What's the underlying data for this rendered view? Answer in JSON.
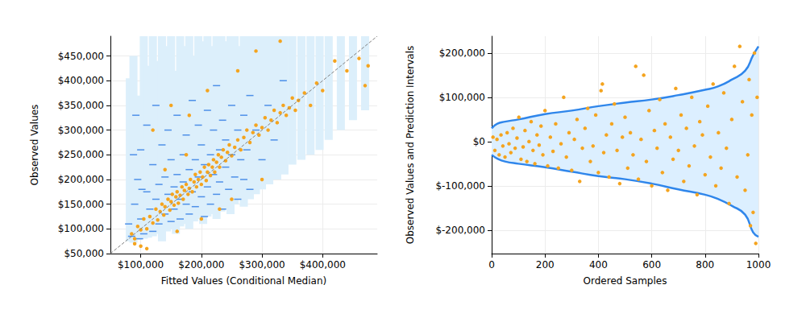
{
  "chart_data": [
    {
      "type": "scatter",
      "xlabel": "Fitted Values (Conditional Median)",
      "ylabel": "Observed Values",
      "xlim": [
        50000,
        490000
      ],
      "ylim": [
        50000,
        490000
      ],
      "xticks": [
        {
          "value": 100000,
          "label": "$100,000"
        },
        {
          "value": 200000,
          "label": "$200,000"
        },
        {
          "value": 300000,
          "label": "$300,000"
        },
        {
          "value": 400000,
          "label": "$400,000"
        }
      ],
      "yticks": [
        {
          "value": 50000,
          "label": "$50,000"
        },
        {
          "value": 100000,
          "label": "$100,000"
        },
        {
          "value": 150000,
          "label": "$150,000"
        },
        {
          "value": 200000,
          "label": "$200,000"
        },
        {
          "value": 250000,
          "label": "$250,000"
        },
        {
          "value": 300000,
          "label": "$300,000"
        },
        {
          "value": 350000,
          "label": "$350,000"
        },
        {
          "value": 400000,
          "label": "$400,000"
        },
        {
          "value": 450000,
          "label": "$450,000"
        }
      ],
      "grid": true,
      "series": [
        {
          "type": "interval",
          "color": "#dceffb",
          "x": [
            82000,
            88000,
            95000,
            105000,
            112000,
            120000,
            128000,
            135000,
            143000,
            150000,
            158000,
            165000,
            172000,
            180000,
            188000,
            195000,
            203000,
            210000,
            218000,
            225000,
            233000,
            240000,
            248000,
            255000,
            263000,
            270000,
            280000,
            290000,
            300000,
            312000,
            325000,
            337000,
            350000,
            365000,
            380000,
            395000,
            410000,
            430000,
            450000,
            470000
          ],
          "low": [
            75000,
            72000,
            78000,
            80000,
            82000,
            85000,
            90000,
            75000,
            95000,
            100000,
            90000,
            105000,
            110000,
            100000,
            115000,
            120000,
            110000,
            125000,
            130000,
            120000,
            135000,
            140000,
            130000,
            150000,
            160000,
            145000,
            160000,
            170000,
            180000,
            190000,
            200000,
            210000,
            230000,
            240000,
            250000,
            260000,
            280000,
            300000,
            320000,
            340000
          ],
          "high": [
            405000,
            450000,
            370000,
            490000,
            430000,
            490000,
            440000,
            490000,
            470000,
            490000,
            420000,
            490000,
            470000,
            490000,
            450000,
            490000,
            480000,
            490000,
            470000,
            490000,
            490000,
            480000,
            490000,
            490000,
            470000,
            490000,
            490000,
            490000,
            490000,
            490000,
            490000,
            490000,
            490000,
            490000,
            490000,
            490000,
            490000,
            490000,
            490000,
            490000
          ]
        },
        {
          "type": "scatter",
          "marker": "dash",
          "color": "#2a78e4",
          "x": [
            85000,
            90000,
            95000,
            100000,
            100000,
            105000,
            110000,
            110000,
            115000,
            120000,
            120000,
            125000,
            125000,
            130000,
            130000,
            135000,
            140000,
            140000,
            145000,
            145000,
            150000,
            150000,
            155000,
            155000,
            160000,
            160000,
            165000,
            165000,
            170000,
            170000,
            175000,
            175000,
            180000,
            180000,
            185000,
            185000,
            190000,
            190000,
            195000,
            195000,
            200000,
            200000,
            205000,
            205000,
            210000,
            210000,
            215000,
            215000,
            220000,
            220000,
            225000,
            225000,
            230000,
            230000,
            235000,
            235000,
            240000,
            240000,
            245000,
            250000,
            250000,
            255000,
            260000,
            260000,
            265000,
            270000,
            270000,
            275000,
            280000,
            280000,
            290000,
            300000,
            310000,
            320000,
            335000,
            80000,
            88000,
            92000,
            98000,
            102000
          ],
          "values": [
            85000,
            150000,
            200000,
            120000,
            260000,
            90000,
            175000,
            310000,
            140000,
            95000,
            230000,
            160000,
            350000,
            190000,
            110000,
            270000,
            130000,
            205000,
            170000,
            300000,
            115000,
            240000,
            185000,
            140000,
            210000,
            330000,
            160000,
            120000,
            250000,
            195000,
            150000,
            290000,
            220000,
            130000,
            175000,
            360000,
            240000,
            145000,
            205000,
            310000,
            165000,
            270000,
            230000,
            125000,
            185000,
            340000,
            250000,
            150000,
            210000,
            300000,
            170000,
            390000,
            260000,
            195000,
            140000,
            320000,
            225000,
            280000,
            180000,
            250000,
            350000,
            205000,
            160000,
            300000,
            240000,
            200000,
            330000,
            260000,
            180000,
            370000,
            300000,
            240000,
            350000,
            280000,
            400000,
            110000,
            250000,
            330000,
            80000,
            180000
          ]
        },
        {
          "type": "scatter",
          "marker": "circle",
          "color": "#f4a41f",
          "x": [
            85000,
            90000,
            95000,
            100000,
            105000,
            110000,
            115000,
            120000,
            125000,
            128000,
            132000,
            135000,
            138000,
            140000,
            145000,
            148000,
            150000,
            152000,
            155000,
            158000,
            160000,
            162000,
            165000,
            168000,
            170000,
            172000,
            175000,
            178000,
            180000,
            182000,
            185000,
            188000,
            190000,
            192000,
            195000,
            198000,
            200000,
            202000,
            205000,
            208000,
            210000,
            212000,
            215000,
            218000,
            220000,
            222000,
            225000,
            228000,
            230000,
            233000,
            236000,
            240000,
            243000,
            246000,
            250000,
            255000,
            260000,
            265000,
            270000,
            275000,
            280000,
            285000,
            290000,
            295000,
            300000,
            305000,
            310000,
            315000,
            320000,
            325000,
            330000,
            335000,
            340000,
            345000,
            350000,
            355000,
            360000,
            370000,
            380000,
            390000,
            400000,
            420000,
            440000,
            460000,
            470000,
            475000,
            120000,
            150000,
            180000,
            200000,
            230000,
            110000,
            160000,
            250000,
            210000,
            300000,
            175000,
            140000,
            260000,
            330000,
            290000,
            100000,
            90000
          ],
          "values": [
            90000,
            80000,
            105000,
            98000,
            120000,
            100000,
            125000,
            112000,
            140000,
            118000,
            135000,
            150000,
            128000,
            145000,
            160000,
            138000,
            155000,
            170000,
            148000,
            165000,
            175000,
            152000,
            168000,
            185000,
            160000,
            178000,
            190000,
            170000,
            182000,
            200000,
            175000,
            195000,
            210000,
            185000,
            200000,
            215000,
            190000,
            205000,
            225000,
            198000,
            215000,
            230000,
            208000,
            225000,
            240000,
            215000,
            235000,
            250000,
            225000,
            245000,
            260000,
            238000,
            255000,
            270000,
            248000,
            265000,
            280000,
            260000,
            285000,
            300000,
            275000,
            295000,
            310000,
            290000,
            305000,
            325000,
            300000,
            320000,
            340000,
            315000,
            335000,
            350000,
            330000,
            345000,
            365000,
            340000,
            360000,
            375000,
            350000,
            395000,
            380000,
            440000,
            420000,
            445000,
            390000,
            430000,
            300000,
            350000,
            330000,
            120000,
            140000,
            60000,
            95000,
            160000,
            380000,
            200000,
            250000,
            220000,
            420000,
            480000,
            460000,
            65000,
            70000
          ]
        },
        {
          "type": "line",
          "line_style": "dashed",
          "color": "#808080",
          "x": [
            50000,
            490000
          ],
          "values": [
            50000,
            490000
          ]
        }
      ]
    },
    {
      "type": "scatter",
      "xlabel": "Ordered Samples",
      "ylabel": "Observed Values and Prediction Intervals",
      "xlim": [
        0,
        1000
      ],
      "ylim": [
        -253000,
        238000
      ],
      "xticks": [
        0,
        200,
        400,
        600,
        800,
        1000
      ],
      "yticks": [
        {
          "value": -200000,
          "label": "$-200,000"
        },
        {
          "value": -100000,
          "label": "$-100,000"
        },
        {
          "value": 0,
          "label": "$0"
        },
        {
          "value": 100000,
          "label": "$100,000"
        },
        {
          "value": 200000,
          "label": "$200,000"
        }
      ],
      "grid": true,
      "series": [
        {
          "type": "band",
          "color": "#2f86eb",
          "x": [
            0,
            20,
            50,
            100,
            200,
            300,
            400,
            500,
            600,
            700,
            800,
            850,
            900,
            950,
            980,
            1000
          ],
          "low": [
            -30000,
            -38000,
            -45000,
            -50000,
            -58000,
            -68000,
            -78000,
            -85000,
            -95000,
            -108000,
            -120000,
            -130000,
            -145000,
            -165000,
            -205000,
            -215000
          ],
          "high": [
            30000,
            40000,
            45000,
            50000,
            62000,
            70000,
            80000,
            88000,
            95000,
            105000,
            117000,
            125000,
            140000,
            160000,
            195000,
            215000
          ]
        },
        {
          "type": "scatter",
          "marker": "circle",
          "color": "#f4a41f",
          "x": [
            5,
            12,
            20,
            28,
            35,
            42,
            50,
            58,
            65,
            72,
            80,
            88,
            95,
            102,
            110,
            118,
            125,
            132,
            140,
            148,
            155,
            162,
            170,
            178,
            185,
            192,
            200,
            210,
            220,
            230,
            240,
            250,
            260,
            270,
            280,
            290,
            300,
            310,
            320,
            330,
            340,
            350,
            360,
            370,
            380,
            390,
            400,
            410,
            415,
            420,
            430,
            440,
            450,
            460,
            470,
            480,
            490,
            500,
            510,
            520,
            530,
            540,
            550,
            560,
            570,
            580,
            590,
            600,
            610,
            620,
            630,
            640,
            650,
            660,
            670,
            680,
            690,
            700,
            710,
            720,
            730,
            740,
            750,
            760,
            770,
            780,
            790,
            800,
            810,
            820,
            830,
            840,
            850,
            860,
            870,
            880,
            890,
            900,
            910,
            920,
            930,
            940,
            950,
            960,
            965,
            970,
            975,
            980,
            985,
            990,
            995
          ],
          "values": [
            10000,
            -20000,
            5000,
            -30000,
            15000,
            -10000,
            -35000,
            20000,
            -5000,
            -25000,
            30000,
            -15000,
            8000,
            55000,
            -40000,
            -12000,
            25000,
            -45000,
            0,
            45000,
            -20000,
            -50000,
            15000,
            -8000,
            35000,
            -30000,
            70000,
            -55000,
            10000,
            -22000,
            40000,
            -60000,
            -5000,
            100000,
            -35000,
            20000,
            -65000,
            5000,
            50000,
            -90000,
            -15000,
            30000,
            75000,
            -45000,
            -10000,
            60000,
            -70000,
            115000,
            130000,
            -25000,
            15000,
            -80000,
            40000,
            85000,
            -20000,
            -95000,
            10000,
            55000,
            -60000,
            20000,
            -30000,
            170000,
            -85000,
            5000,
            150000,
            -45000,
            70000,
            -100000,
            25000,
            -15000,
            95000,
            -70000,
            40000,
            -110000,
            10000,
            -40000,
            120000,
            -20000,
            60000,
            -90000,
            30000,
            -55000,
            100000,
            -10000,
            -120000,
            45000,
            15000,
            -75000,
            80000,
            -35000,
            130000,
            -100000,
            20000,
            -60000,
            110000,
            -15000,
            -140000,
            50000,
            170000,
            -80000,
            215000,
            90000,
            -110000,
            -30000,
            140000,
            -190000,
            60000,
            -160000,
            200000,
            -230000,
            100000
          ]
        }
      ]
    }
  ]
}
